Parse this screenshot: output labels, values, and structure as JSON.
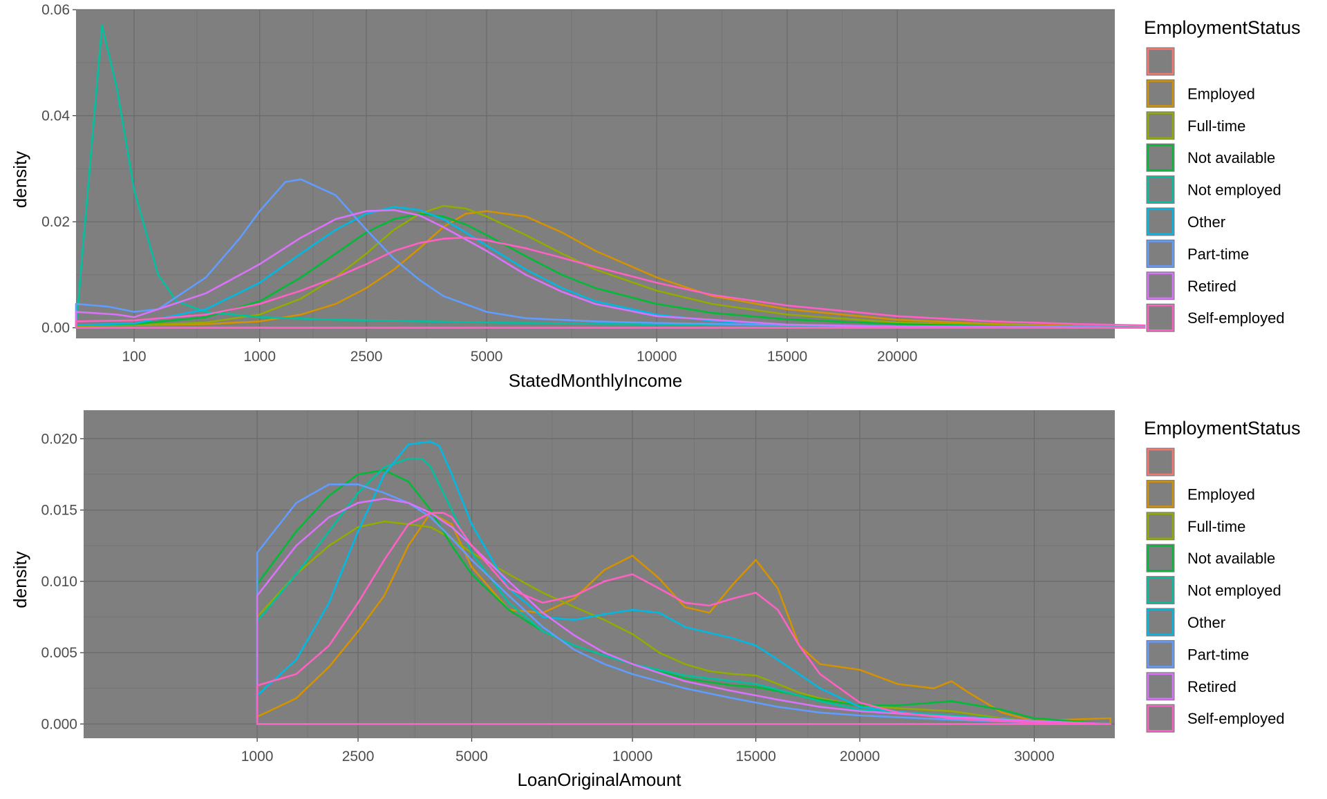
{
  "legend": {
    "title": "EmploymentStatus",
    "labels": [
      "",
      "Employed",
      "Full-time",
      "Not available",
      "Not employed",
      "Other",
      "Part-time",
      "Retired",
      "Self-employed"
    ]
  },
  "colors": {
    "panel_background": "#7f7f7f",
    "grid_major": "#6b6b6b",
    "grid_minor": "#757575",
    "series": [
      "#F8766D",
      "#D39200",
      "#93AA00",
      "#00BA38",
      "#00C19F",
      "#00B9E3",
      "#619CFF",
      "#DB72FB",
      "#FF61C3"
    ]
  },
  "chart_data": [
    {
      "type": "line",
      "subtype": "density",
      "xlabel": "StatedMonthlyIncome",
      "ylabel": "density",
      "x_scale": "sqrt",
      "xlim": [
        0,
        35000
      ],
      "ylim": [
        -0.002,
        0.06
      ],
      "x_ticks": [
        100,
        1000,
        2500,
        5000,
        10000,
        15000,
        20000
      ],
      "x_tick_labels": [
        "100",
        "1000",
        "2500",
        "5000",
        "10000",
        "15000",
        "20000"
      ],
      "y_ticks": [
        0,
        0.02,
        0.04,
        0.06
      ],
      "y_tick_labels": [
        "0.00",
        "0.02",
        "0.04",
        "0.06"
      ],
      "grid": true,
      "legend_position": "right",
      "series": [
        {
          "name": "",
          "x": [
            0,
            35000
          ],
          "y": [
            0,
            0
          ]
        },
        {
          "name": "Employed",
          "x": [
            0,
            100,
            500,
            1000,
            1500,
            2000,
            2500,
            3000,
            3500,
            4000,
            4500,
            5000,
            6000,
            7000,
            8000,
            10000,
            12000,
            15000,
            20000,
            25000,
            30000,
            35000
          ],
          "y": [
            0.0004,
            0.0005,
            0.0007,
            0.0012,
            0.0025,
            0.0045,
            0.0075,
            0.011,
            0.015,
            0.019,
            0.0215,
            0.022,
            0.021,
            0.018,
            0.0145,
            0.0095,
            0.006,
            0.0035,
            0.0015,
            0.0007,
            0.0003,
            0.0001
          ]
        },
        {
          "name": "Full-time",
          "x": [
            0,
            100,
            500,
            1000,
            1500,
            2000,
            2500,
            3000,
            3500,
            4000,
            4500,
            5000,
            6000,
            7000,
            8000,
            10000,
            12000,
            15000,
            20000,
            25000,
            30000,
            35000
          ],
          "y": [
            0.0004,
            0.0005,
            0.001,
            0.0025,
            0.0055,
            0.0095,
            0.014,
            0.0185,
            0.0215,
            0.023,
            0.0225,
            0.021,
            0.0175,
            0.014,
            0.011,
            0.007,
            0.0045,
            0.0025,
            0.001,
            0.0005,
            0.0002,
            0.0001
          ]
        },
        {
          "name": "Not available",
          "x": [
            0,
            100,
            500,
            1000,
            1500,
            2000,
            2500,
            3000,
            3500,
            4000,
            4500,
            5000,
            6000,
            7000,
            8000,
            10000,
            12000,
            15000,
            20000,
            25000,
            30000,
            35000
          ],
          "y": [
            0.0005,
            0.0007,
            0.002,
            0.005,
            0.0095,
            0.014,
            0.018,
            0.0205,
            0.0215,
            0.021,
            0.0195,
            0.0175,
            0.0135,
            0.01,
            0.0075,
            0.0045,
            0.0028,
            0.0016,
            0.0007,
            0.0003,
            0.0001,
            0.0001
          ]
        },
        {
          "name": "Not employed",
          "x": [
            0,
            20,
            50,
            100,
            200,
            300,
            500,
            1000,
            2000,
            5000,
            10000,
            20000,
            35000
          ],
          "y": [
            0,
            0.057,
            0.045,
            0.026,
            0.01,
            0.005,
            0.003,
            0.002,
            0.0015,
            0.001,
            0.0006,
            0.0003,
            0.0001
          ]
        },
        {
          "name": "Other",
          "x": [
            0,
            100,
            500,
            1000,
            1500,
            2000,
            2500,
            3000,
            3500,
            4000,
            4500,
            5000,
            6000,
            7000,
            8000,
            10000,
            12000,
            15000,
            20000,
            25000,
            30000,
            35000
          ],
          "y": [
            0.0005,
            0.0008,
            0.0035,
            0.0085,
            0.014,
            0.0185,
            0.0215,
            0.0228,
            0.0222,
            0.0205,
            0.018,
            0.0155,
            0.011,
            0.0075,
            0.005,
            0.0025,
            0.0013,
            0.0006,
            0.0002,
            0.0001,
            0,
            0
          ]
        },
        {
          "name": "Part-time",
          "x": [
            0,
            30,
            100,
            200,
            500,
            800,
            1000,
            1300,
            1500,
            2000,
            2500,
            3000,
            3500,
            4000,
            5000,
            6000,
            8000,
            10000,
            15000,
            20000,
            35000
          ],
          "y": [
            0.0045,
            0.004,
            0.003,
            0.0035,
            0.0095,
            0.017,
            0.022,
            0.0275,
            0.028,
            0.025,
            0.0185,
            0.013,
            0.009,
            0.006,
            0.003,
            0.0018,
            0.0012,
            0.0009,
            0.0005,
            0.0003,
            0.0001
          ]
        },
        {
          "name": "Retired",
          "x": [
            0,
            50,
            100,
            500,
            1000,
            1500,
            2000,
            2500,
            3000,
            3500,
            4000,
            5000,
            6000,
            7000,
            8000,
            10000,
            15000,
            20000,
            35000
          ],
          "y": [
            0.003,
            0.0025,
            0.002,
            0.0065,
            0.012,
            0.017,
            0.0205,
            0.022,
            0.0222,
            0.0212,
            0.019,
            0.0145,
            0.01,
            0.0068,
            0.0045,
            0.0022,
            0.0006,
            0.0002,
            0
          ]
        },
        {
          "name": "Self-employed",
          "x": [
            0,
            100,
            500,
            1000,
            1500,
            2000,
            2500,
            3000,
            3500,
            4000,
            4500,
            5000,
            6000,
            7000,
            8000,
            10000,
            12000,
            15000,
            20000,
            25000,
            30000,
            35000
          ],
          "y": [
            0.0012,
            0.0014,
            0.0025,
            0.0045,
            0.007,
            0.0095,
            0.012,
            0.0145,
            0.016,
            0.0168,
            0.017,
            0.0165,
            0.015,
            0.0132,
            0.0115,
            0.0085,
            0.0062,
            0.0042,
            0.0022,
            0.0012,
            0.0007,
            0.0004
          ]
        }
      ]
    },
    {
      "type": "line",
      "subtype": "density",
      "xlabel": "LoanOriginalAmount",
      "ylabel": "density",
      "x_scale": "sqrt",
      "xlim": [
        0,
        35000
      ],
      "ylim": [
        -0.001,
        0.022
      ],
      "x_ticks": [
        1000,
        2500,
        5000,
        10000,
        15000,
        20000,
        30000
      ],
      "x_tick_labels": [
        "1000",
        "2500",
        "5000",
        "10000",
        "15000",
        "20000",
        "30000"
      ],
      "y_ticks": [
        0,
        0.005,
        0.01,
        0.015,
        0.02
      ],
      "y_tick_labels": [
        "0.000",
        "0.005",
        "0.010",
        "0.015",
        "0.020"
      ],
      "grid": true,
      "legend_position": "right",
      "series": [
        {
          "name": "",
          "x": [
            1000,
            35000
          ],
          "y": [
            0,
            0
          ]
        },
        {
          "name": "Employed",
          "x": [
            1000,
            1500,
            2000,
            2500,
            3000,
            3500,
            4000,
            4500,
            5000,
            6000,
            7000,
            8000,
            9000,
            10000,
            11000,
            12000,
            13000,
            14000,
            15000,
            16000,
            17000,
            18000,
            20000,
            22000,
            24000,
            25000,
            26000,
            28000,
            30000,
            32000,
            35000
          ],
          "y": [
            0.0005,
            0.0018,
            0.004,
            0.0065,
            0.009,
            0.0125,
            0.0148,
            0.014,
            0.011,
            0.008,
            0.0078,
            0.0088,
            0.0108,
            0.0118,
            0.0102,
            0.0082,
            0.0078,
            0.0098,
            0.0115,
            0.0095,
            0.0055,
            0.0042,
            0.0038,
            0.0028,
            0.0025,
            0.003,
            0.0022,
            0.0008,
            0.0002,
            0.0003,
            0.0004
          ]
        },
        {
          "name": "Full-time",
          "x": [
            1000,
            1500,
            2000,
            2500,
            3000,
            3500,
            4000,
            4500,
            5000,
            6000,
            7000,
            8000,
            9000,
            10000,
            11000,
            12000,
            13000,
            14000,
            15000,
            16000,
            17000,
            18000,
            20000,
            22000,
            25000,
            28000,
            30000,
            35000
          ],
          "y": [
            0.0075,
            0.0105,
            0.0125,
            0.0138,
            0.0142,
            0.014,
            0.0138,
            0.013,
            0.012,
            0.0105,
            0.0092,
            0.0082,
            0.0073,
            0.0063,
            0.005,
            0.0042,
            0.0037,
            0.0035,
            0.0034,
            0.0028,
            0.0022,
            0.0018,
            0.0013,
            0.0011,
            0.0009,
            0.0004,
            0.0002,
            0
          ]
        },
        {
          "name": "Not available",
          "x": [
            1000,
            1500,
            2000,
            2500,
            3000,
            3500,
            4000,
            4500,
            5000,
            6000,
            7000,
            8000,
            9000,
            10000,
            12000,
            14000,
            15000,
            16000,
            18000,
            20000,
            22000,
            25000,
            28000,
            30000,
            35000
          ],
          "y": [
            0.0098,
            0.0135,
            0.016,
            0.0175,
            0.0178,
            0.017,
            0.015,
            0.0125,
            0.0105,
            0.008,
            0.0065,
            0.0055,
            0.0048,
            0.0042,
            0.0032,
            0.0027,
            0.0026,
            0.0023,
            0.0017,
            0.0013,
            0.0013,
            0.0016,
            0.001,
            0.0004,
            0
          ]
        },
        {
          "name": "Not employed",
          "x": [
            1000,
            1500,
            2000,
            2500,
            3000,
            3500,
            3800,
            4000,
            4500,
            5000,
            6000,
            7000,
            8000,
            9000,
            10000,
            12000,
            14000,
            15000,
            16000,
            18000,
            20000,
            25000,
            30000,
            35000
          ],
          "y": [
            0.0072,
            0.0105,
            0.0135,
            0.0162,
            0.018,
            0.0186,
            0.0186,
            0.018,
            0.015,
            0.012,
            0.0085,
            0.0065,
            0.0055,
            0.0048,
            0.0042,
            0.0034,
            0.003,
            0.0028,
            0.0024,
            0.0016,
            0.001,
            0.0006,
            0.0002,
            0
          ]
        },
        {
          "name": "Other",
          "x": [
            1000,
            1500,
            2000,
            2500,
            3000,
            3500,
            4000,
            4200,
            4500,
            5000,
            6000,
            7000,
            8000,
            9000,
            10000,
            11000,
            12000,
            14000,
            15000,
            16000,
            18000,
            20000,
            25000,
            30000,
            35000
          ],
          "y": [
            0.002,
            0.0045,
            0.0085,
            0.0135,
            0.0175,
            0.0196,
            0.0198,
            0.0195,
            0.0175,
            0.014,
            0.0095,
            0.0075,
            0.0073,
            0.0077,
            0.008,
            0.0078,
            0.0068,
            0.006,
            0.0055,
            0.0045,
            0.0025,
            0.0012,
            0.0004,
            0.0001,
            0
          ]
        },
        {
          "name": "Part-time",
          "x": [
            1000,
            1500,
            2000,
            2500,
            3000,
            3500,
            4000,
            4500,
            5000,
            6000,
            7000,
            8000,
            9000,
            10000,
            12000,
            14000,
            15000,
            16000,
            18000,
            20000,
            25000,
            30000,
            35000
          ],
          "y": [
            0.012,
            0.0155,
            0.0168,
            0.0168,
            0.0162,
            0.0155,
            0.0145,
            0.013,
            0.0115,
            0.009,
            0.0068,
            0.0052,
            0.0042,
            0.0035,
            0.0025,
            0.0018,
            0.0015,
            0.0012,
            0.0008,
            0.0006,
            0.0003,
            0.0001,
            0
          ]
        },
        {
          "name": "Retired",
          "x": [
            1000,
            1500,
            2000,
            2500,
            3000,
            3500,
            4000,
            4500,
            5000,
            6000,
            7000,
            8000,
            9000,
            10000,
            12000,
            14000,
            15000,
            16000,
            18000,
            20000,
            25000,
            30000,
            35000
          ],
          "y": [
            0.009,
            0.0125,
            0.0145,
            0.0155,
            0.0158,
            0.0155,
            0.0148,
            0.0138,
            0.0125,
            0.01,
            0.0078,
            0.0062,
            0.005,
            0.0042,
            0.003,
            0.0023,
            0.002,
            0.0017,
            0.0012,
            0.0009,
            0.0005,
            0.0002,
            0
          ]
        },
        {
          "name": "Self-employed",
          "x": [
            1000,
            1500,
            2000,
            2500,
            3000,
            3500,
            4000,
            4300,
            4500,
            5000,
            6000,
            7000,
            8000,
            9000,
            10000,
            11000,
            12000,
            13000,
            14000,
            15000,
            16000,
            17000,
            18000,
            20000,
            22000,
            25000,
            28000,
            30000,
            35000
          ],
          "y": [
            0.0027,
            0.0035,
            0.0055,
            0.0085,
            0.0115,
            0.014,
            0.0148,
            0.0148,
            0.0145,
            0.0125,
            0.0095,
            0.0085,
            0.009,
            0.01,
            0.0105,
            0.0095,
            0.0085,
            0.0083,
            0.0088,
            0.0092,
            0.008,
            0.0055,
            0.0035,
            0.0015,
            0.0008,
            0.0004,
            0.0002,
            0.0001,
            0
          ]
        }
      ]
    }
  ]
}
